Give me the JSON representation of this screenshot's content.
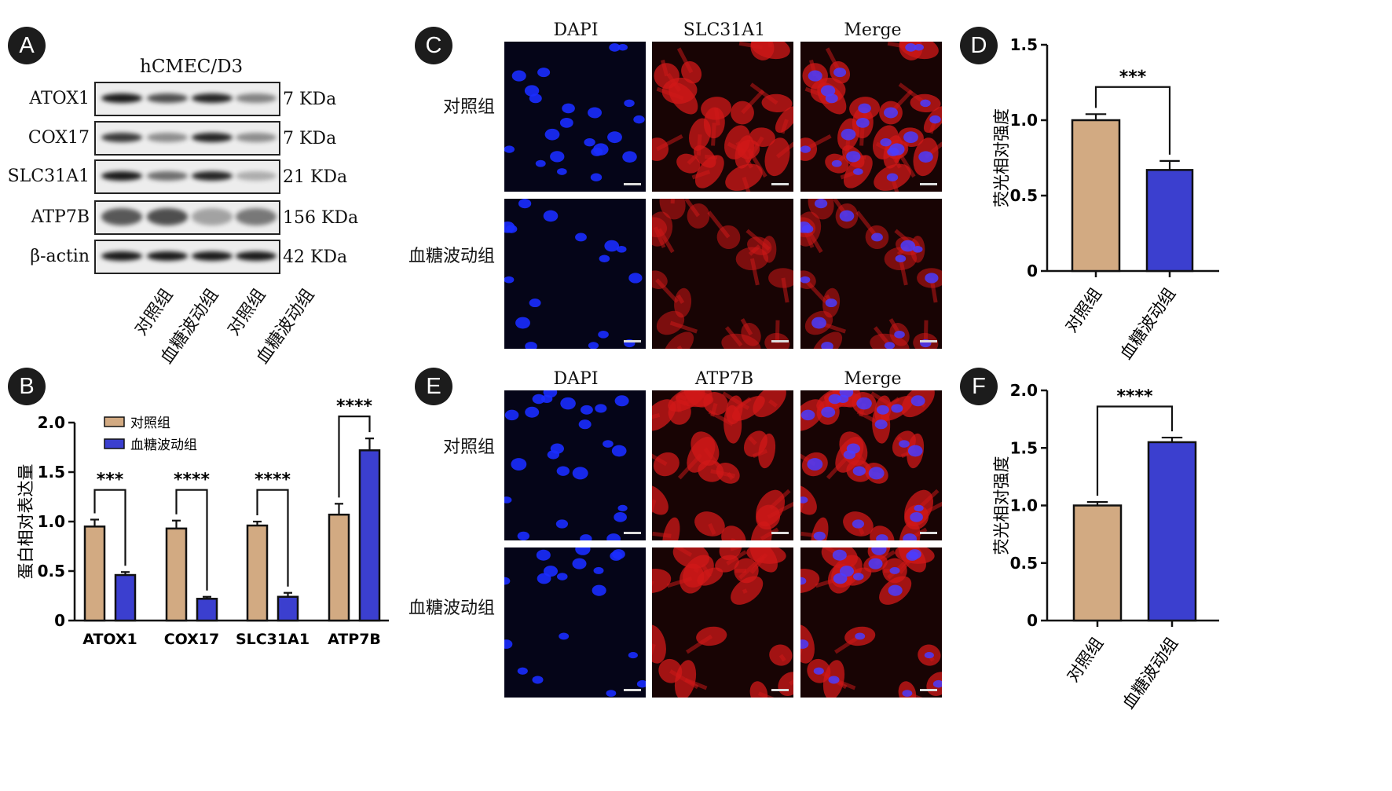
{
  "panels": {
    "A": "A",
    "B": "B",
    "C": "C",
    "D": "D",
    "E": "E",
    "F": "F"
  },
  "western_blot": {
    "cell_line": "hCMEC/D3",
    "rows": [
      {
        "protein": "ATOX1",
        "size": "7 KDa"
      },
      {
        "protein": "COX17",
        "size": "7 KDa"
      },
      {
        "protein": "SLC31A1",
        "size": "21 KDa"
      },
      {
        "protein": "ATP7B",
        "size": "156 KDa"
      },
      {
        "protein": "β-actin",
        "size": "42 KDa"
      }
    ],
    "lanes": [
      "对照组",
      "血糖波动组",
      "对照组",
      "血糖波动组"
    ]
  },
  "microscopy_C": {
    "columns": [
      "DAPI",
      "SLC31A1",
      "Merge"
    ],
    "rows": [
      "对照组",
      "血糖波动组"
    ]
  },
  "microscopy_E": {
    "columns": [
      "DAPI",
      "ATP7B",
      "Merge"
    ],
    "rows": [
      "对照组",
      "血糖波动组"
    ]
  },
  "colors": {
    "control": "#d2aa82",
    "glucose": "#3b3fcf",
    "dapi": "#1a2cff",
    "red": "#d01818"
  },
  "chart_data": [
    {
      "panel": "B",
      "type": "bar",
      "ylabel": "蛋白相对表达量",
      "ylim": [
        0,
        2.0
      ],
      "yticks": [
        "0",
        "0.5",
        "1.0",
        "1.5",
        "2.0"
      ],
      "categories": [
        "ATOX1",
        "COX17",
        "SLC31A1",
        "ATP7B"
      ],
      "legend": "top-left",
      "series": [
        {
          "name": "对照组",
          "values": [
            0.95,
            0.93,
            0.96,
            1.07
          ],
          "errors": [
            0.07,
            0.08,
            0.04,
            0.11
          ]
        },
        {
          "name": "血糖波动组",
          "values": [
            0.46,
            0.22,
            0.24,
            1.72
          ],
          "errors": [
            0.03,
            0.02,
            0.04,
            0.12
          ]
        }
      ],
      "significance": [
        "***",
        "****",
        "****",
        "****"
      ]
    },
    {
      "panel": "D",
      "type": "bar",
      "ylabel": "荧光相对强度",
      "ylim": [
        0,
        1.5
      ],
      "yticks": [
        "0",
        "0.5",
        "1.0",
        "1.5"
      ],
      "categories": [
        "对照组",
        "血糖波动组"
      ],
      "values": [
        1.0,
        0.67
      ],
      "errors": [
        0.04,
        0.06
      ],
      "significance": "***"
    },
    {
      "panel": "F",
      "type": "bar",
      "ylabel": "荧光相对强度",
      "ylim": [
        0,
        2.0
      ],
      "yticks": [
        "0",
        "0.5",
        "1.0",
        "1.5",
        "2.0"
      ],
      "categories": [
        "对照组",
        "血糖波动组"
      ],
      "values": [
        1.0,
        1.55
      ],
      "errors": [
        0.03,
        0.04
      ],
      "significance": "****"
    }
  ]
}
